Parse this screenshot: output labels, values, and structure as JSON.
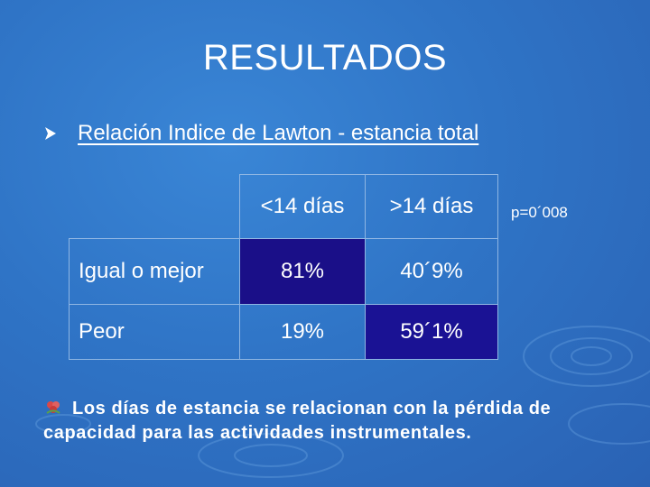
{
  "slide": {
    "title": "RESULTADOS",
    "bullet": {
      "icon": "arrow-bullet-icon",
      "text": "Relación Indice de Lawton - estancia total"
    },
    "table": {
      "headers": [
        "<14 días",
        ">14 días"
      ],
      "rows": [
        {
          "label": "Igual o mejor",
          "values": [
            "81%",
            "40´9%"
          ]
        },
        {
          "label": "Peor",
          "values": [
            "19%",
            "59´1%"
          ]
        }
      ]
    },
    "p_value": "p=0´008",
    "conclusion": {
      "icon": "flower-bullet-icon",
      "text": "Los días de estancia se relacionan con la pérdida de capacidad para las actividades instrumentales."
    }
  },
  "colors": {
    "background": "#2f74c6",
    "cell_dark": "#1a0f88",
    "text": "#ffffff"
  }
}
